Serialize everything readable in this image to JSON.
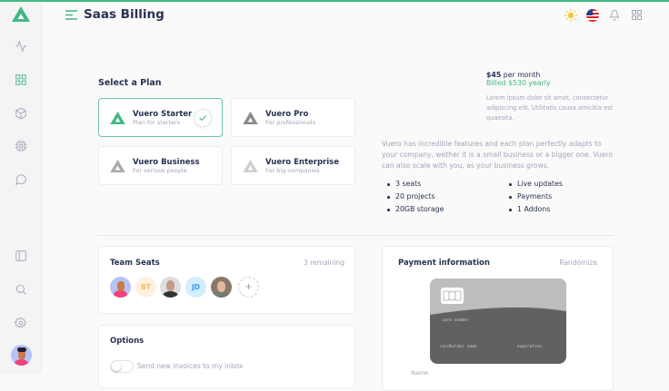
{
  "header": {
    "title": "Saas Billing",
    "icons": [
      "menu-icon",
      "sun-icon",
      "us-flag-icon",
      "bell-icon",
      "grid-icon"
    ]
  },
  "sidebar": {
    "items": [
      "activity-icon",
      "grid-icon",
      "box-icon",
      "cpu-icon",
      "message-icon",
      "layout-icon",
      "search-icon",
      "settings-icon"
    ]
  },
  "colors": {
    "accent": "#41b883"
  },
  "plans": {
    "heading": "Select a Plan",
    "items": [
      {
        "name": "Vuero Starter",
        "sub": "Plan for starters",
        "selected": true
      },
      {
        "name": "Vuero Pro",
        "sub": "For professionals"
      },
      {
        "name": "Vuero Business",
        "sub": "For serious people"
      },
      {
        "name": "Vuero Enterprise",
        "sub": "For big companies"
      }
    ]
  },
  "pricing": {
    "price": "$45",
    "period": "per month",
    "billed": "Billed $530 yearly",
    "lorem": "Lorem ipsum dolor sit amet, consectetur adipiscing elit. Utilitatis causa amicitia est quaesita."
  },
  "description": "Vuero has incredible features and each plan perfectly adapts to your company, wether it is a small business or a bigger one. Vuero can also scale with you, as your business grows.",
  "features": {
    "left": [
      "3 seats",
      "20 projects",
      "20GB storage"
    ],
    "right": [
      "Live updates",
      "Payments",
      "1 Addons"
    ]
  },
  "team": {
    "title": "Team Seats",
    "remaining": "3 remaining",
    "initials": [
      "BT",
      "JD"
    ],
    "add": "+"
  },
  "options": {
    "title": "Options",
    "toggle_label": "Send new invoices to my inbox",
    "toggle_on": false
  },
  "payment": {
    "title": "Payment information",
    "randomize": "Randomize",
    "card_number": "card number",
    "holder": "cardholder name",
    "expiration": "expiration",
    "name_label": "Name"
  }
}
